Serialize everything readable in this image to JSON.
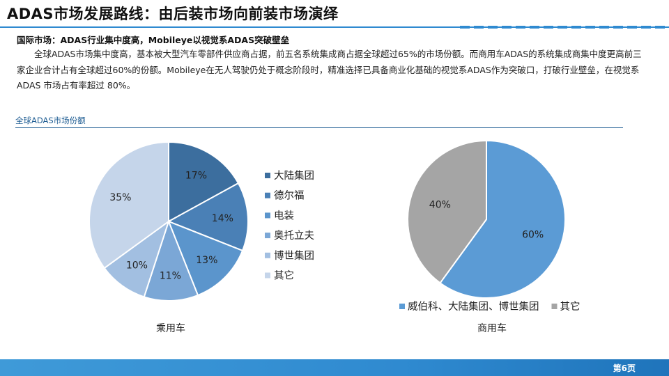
{
  "page": {
    "title": "ADAS市场发展路线：由后装市场向前装市场演绎",
    "subtitle": "国际市场：ADAS行业集中度高，Mobileye以视觉系ADAS突破壁垒",
    "body": "全球ADAS市场集中度高，基本被大型汽车零部件供应商占据，前五名系统集成商占据全球超过65%的市场份额。而商用车ADAS的系统集成商集中度更高前三家企业合计占有全球超过60%的份额。Mobileye在无人驾驶仍处于概念阶段时，精准选择已具备商业化基础的视觉系ADAS作为突破口，打破行业壁垒，在视觉系 ADAS 市场占有率超过 80%。",
    "section_label": "全球ADAS市场份额",
    "page_number": "第6页"
  },
  "colors": {
    "accent": "#2f8ad0",
    "section": "#1f5d93"
  },
  "chart_data": [
    {
      "type": "pie",
      "caption": "乘用车",
      "legend_position": "right",
      "unit": "%",
      "slices": [
        {
          "label": "大陆集团",
          "value": 17,
          "data_label": "17%",
          "color": "#3c6e9e"
        },
        {
          "label": "德尔福",
          "value": 14,
          "data_label": "14%",
          "color": "#4a80b6"
        },
        {
          "label": "电装",
          "value": 13,
          "data_label": "13%",
          "color": "#5b95cc"
        },
        {
          "label": "奥托立夫",
          "value": 11,
          "data_label": "11%",
          "color": "#7ba7d6"
        },
        {
          "label": "博世集团",
          "value": 10,
          "data_label": "10%",
          "color": "#a2bfe1"
        },
        {
          "label": "其它",
          "value": 35,
          "data_label": "35%",
          "color": "#c5d5ea"
        }
      ]
    },
    {
      "type": "pie",
      "caption": "商用车",
      "legend_position": "bottom",
      "unit": "%",
      "slices": [
        {
          "label": "威伯科、大陆集团、博世集团",
          "value": 60,
          "data_label": "60%",
          "color": "#5b9bd5"
        },
        {
          "label": "其它",
          "value": 40,
          "data_label": "40%",
          "color": "#a5a5a5"
        }
      ]
    }
  ]
}
